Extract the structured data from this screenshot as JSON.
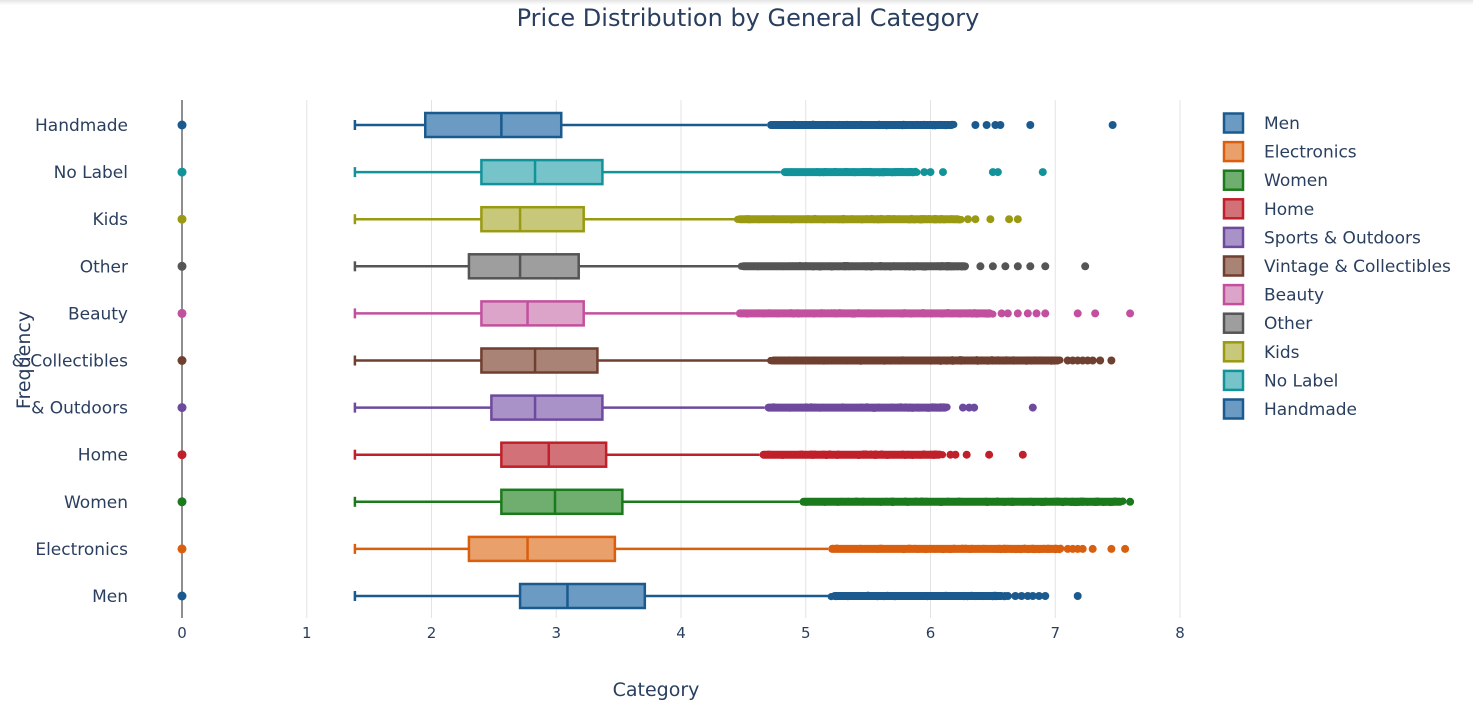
{
  "chart_data": {
    "type": "box",
    "orientation": "horizontal",
    "title": "Price Distribution by General Category",
    "xlabel": "Category",
    "ylabel": "Frequency",
    "xlim": [
      0,
      8
    ],
    "x_ticks": [
      0,
      1,
      2,
      3,
      4,
      5,
      6,
      7,
      8
    ],
    "grid": true,
    "legend_position": "right",
    "categories": [
      "Handmade",
      "No Label",
      "Kids",
      "Other",
      "Beauty",
      "& Collectibles",
      "& Outdoors",
      "Home",
      "Women",
      "Electronics",
      "Men"
    ],
    "series": [
      {
        "name": "Men",
        "category": "Men",
        "color": "#1a5a8e",
        "fill": "#6b9bc3",
        "min": 1.386,
        "q1": 2.71,
        "median": 3.09,
        "q3": 3.71,
        "whisker_high": 5.2,
        "outliers_dense": [
          5.2,
          6.6
        ],
        "outliers": [
          6.62,
          6.68,
          6.73,
          6.78,
          6.82,
          6.87,
          6.92,
          7.18
        ],
        "zero_point": 0
      },
      {
        "name": "Electronics",
        "category": "Electronics",
        "color": "#d95f0e",
        "fill": "#e9a06b",
        "min": 1.386,
        "q1": 2.3,
        "median": 2.77,
        "q3": 3.47,
        "whisker_high": 5.18,
        "outliers_dense": [
          5.18,
          7.05
        ],
        "outliers": [
          7.1,
          7.14,
          7.18,
          7.22,
          7.3,
          7.45,
          7.56
        ],
        "zero_point": 0
      },
      {
        "name": "Women",
        "category": "Women",
        "color": "#1b7a1b",
        "fill": "#6fae6f",
        "min": 1.386,
        "q1": 2.56,
        "median": 2.99,
        "q3": 3.53,
        "whisker_high": 4.95,
        "outliers_dense": [
          4.95,
          7.55
        ],
        "outliers": [
          7.6
        ],
        "zero_point": 0
      },
      {
        "name": "Home",
        "category": "Home",
        "color": "#c0202a",
        "fill": "#d27177",
        "min": 1.386,
        "q1": 2.56,
        "median": 2.94,
        "q3": 3.4,
        "whisker_high": 4.63,
        "outliers_dense": [
          4.63,
          6.1
        ],
        "outliers": [
          6.16,
          6.2,
          6.29,
          6.47,
          6.74
        ],
        "zero_point": 0
      },
      {
        "name": "Sports & Outdoors",
        "category": "& Outdoors",
        "color": "#6d4a9e",
        "fill": "#a992c7",
        "min": 1.386,
        "q1": 2.48,
        "median": 2.83,
        "q3": 3.37,
        "whisker_high": 4.67,
        "outliers_dense": [
          4.67,
          6.15
        ],
        "outliers": [
          6.26,
          6.31,
          6.35,
          6.82
        ],
        "zero_point": 0
      },
      {
        "name": "Vintage & Collectibles",
        "category": "& Collectibles",
        "color": "#6f3f2f",
        "fill": "#a98476",
        "min": 1.386,
        "q1": 2.4,
        "median": 2.83,
        "q3": 3.33,
        "whisker_high": 4.71,
        "outliers_dense": [
          4.71,
          7.05
        ],
        "outliers": [
          7.1,
          7.14,
          7.18,
          7.22,
          7.26,
          7.3,
          7.36,
          7.45
        ],
        "zero_point": 0
      },
      {
        "name": "Beauty",
        "category": "Beauty",
        "color": "#c2509e",
        "fill": "#dda4c9",
        "min": 1.386,
        "q1": 2.4,
        "median": 2.77,
        "q3": 3.22,
        "whisker_high": 4.44,
        "outliers_dense": [
          4.44,
          6.5
        ],
        "outliers": [
          6.57,
          6.62,
          6.7,
          6.78,
          6.85,
          6.92,
          7.18,
          7.32,
          7.6
        ],
        "zero_point": 0
      },
      {
        "name": "Other",
        "category": "Other",
        "color": "#555555",
        "fill": "#9e9e9e",
        "min": 1.386,
        "q1": 2.3,
        "median": 2.71,
        "q3": 3.18,
        "whisker_high": 4.47,
        "outliers_dense": [
          4.47,
          6.3
        ],
        "outliers": [
          6.4,
          6.5,
          6.6,
          6.7,
          6.8,
          6.92,
          7.24
        ],
        "zero_point": 0
      },
      {
        "name": "Kids",
        "category": "Kids",
        "color": "#9a9a12",
        "fill": "#c8c87a",
        "min": 1.386,
        "q1": 2.4,
        "median": 2.71,
        "q3": 3.22,
        "whisker_high": 4.44,
        "outliers_dense": [
          4.44,
          6.25
        ],
        "outliers": [
          6.3,
          6.36,
          6.48,
          6.63,
          6.7
        ],
        "zero_point": 0
      },
      {
        "name": "No Label",
        "category": "No Label",
        "color": "#12939a",
        "fill": "#76c4c9",
        "min": 1.386,
        "q1": 2.4,
        "median": 2.83,
        "q3": 3.37,
        "whisker_high": 4.8,
        "outliers_dense": [
          4.8,
          5.9
        ],
        "outliers": [
          5.95,
          6.0,
          6.1,
          6.5,
          6.54,
          6.9
        ],
        "zero_point": 0
      },
      {
        "name": "Handmade",
        "category": "Handmade",
        "color": "#1a5a8e",
        "fill": "#6b9bc3",
        "min": 1.386,
        "q1": 1.95,
        "median": 2.56,
        "q3": 3.04,
        "whisker_high": 4.69,
        "outliers_dense": [
          4.69,
          6.2
        ],
        "outliers": [
          6.36,
          6.45,
          6.52,
          6.56,
          6.8,
          7.46
        ],
        "zero_point": 0
      }
    ],
    "legend": [
      "Men",
      "Electronics",
      "Women",
      "Home",
      "Sports & Outdoors",
      "Vintage & Collectibles",
      "Beauty",
      "Other",
      "Kids",
      "No Label",
      "Handmade"
    ]
  }
}
